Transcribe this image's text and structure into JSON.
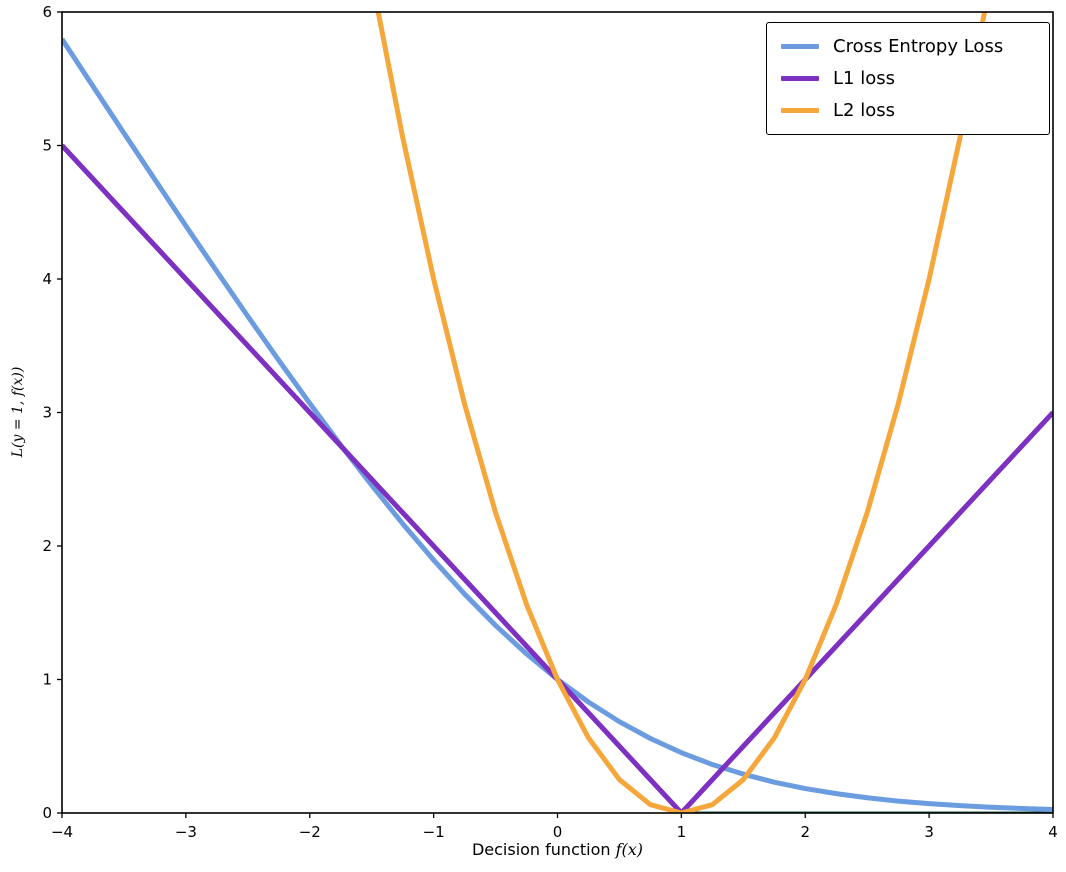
{
  "figure": {
    "background": "#ffffff",
    "axes_border_color": "#000000"
  },
  "chart_data": {
    "type": "line",
    "title": "",
    "xlabel_prefix": "Decision function ",
    "xlabel_math": "f(x)",
    "ylabel_math": "L(y = 1, f(x))",
    "xlim": [
      -4,
      4
    ],
    "ylim": [
      0,
      6
    ],
    "xticks": [
      -4,
      -3,
      -2,
      -1,
      0,
      1,
      2,
      3,
      4
    ],
    "yticks": [
      0,
      1,
      2,
      3,
      4,
      5,
      6
    ],
    "grid": false,
    "legend_position": "upper right",
    "x": [
      -4,
      -3.75,
      -3.5,
      -3.25,
      -3,
      -2.75,
      -2.5,
      -2.25,
      -2,
      -1.75,
      -1.5,
      -1.25,
      -1,
      -0.75,
      -0.5,
      -0.25,
      0,
      0.25,
      0.5,
      0.75,
      1,
      1.25,
      1.5,
      1.75,
      2,
      2.25,
      2.5,
      2.75,
      3,
      3.25,
      3.5,
      3.75,
      4
    ],
    "series": [
      {
        "name": "Cross Entropy Loss",
        "color": "#6c9ce0",
        "width": 5,
        "values": [
          5.797,
          5.444,
          5.093,
          4.744,
          4.398,
          4.057,
          3.721,
          3.391,
          3.069,
          2.756,
          2.455,
          2.167,
          1.895,
          1.64,
          1.405,
          1.192,
          1.0,
          0.831,
          0.684,
          0.558,
          0.452,
          0.363,
          0.291,
          0.231,
          0.183,
          0.145,
          0.114,
          0.089,
          0.07,
          0.055,
          0.043,
          0.034,
          0.026
        ]
      },
      {
        "name": "L1 loss",
        "color": "#7e30c0",
        "width": 5,
        "values": [
          5,
          4.75,
          4.5,
          4.25,
          4,
          3.75,
          3.5,
          3.25,
          3,
          2.75,
          2.5,
          2.25,
          2,
          1.75,
          1.5,
          1.25,
          1,
          0.75,
          0.5,
          0.25,
          0,
          0.25,
          0.5,
          0.75,
          1,
          1.25,
          1.5,
          1.75,
          2,
          2.25,
          2.5,
          2.75,
          3
        ]
      },
      {
        "name": "L2 loss",
        "color": "#f5a73b",
        "width": 5,
        "values": [
          25,
          22.5625,
          20.25,
          18.0625,
          16,
          14.0625,
          12.25,
          10.5625,
          9,
          7.5625,
          6.25,
          5.0625,
          4,
          3.0625,
          2.25,
          1.5625,
          1,
          0.5625,
          0.25,
          0.0625,
          0,
          0.0625,
          0.25,
          0.5625,
          1,
          1.5625,
          2.25,
          3.0625,
          4,
          5.0625,
          6.25,
          7.5625,
          9
        ]
      }
    ],
    "extra_segments": [
      {
        "name": "unlabeled-dark-green-segment",
        "color": "#14584a",
        "width": 3,
        "points": [
          [
            1,
            0
          ],
          [
            4,
            0
          ]
        ]
      }
    ]
  }
}
